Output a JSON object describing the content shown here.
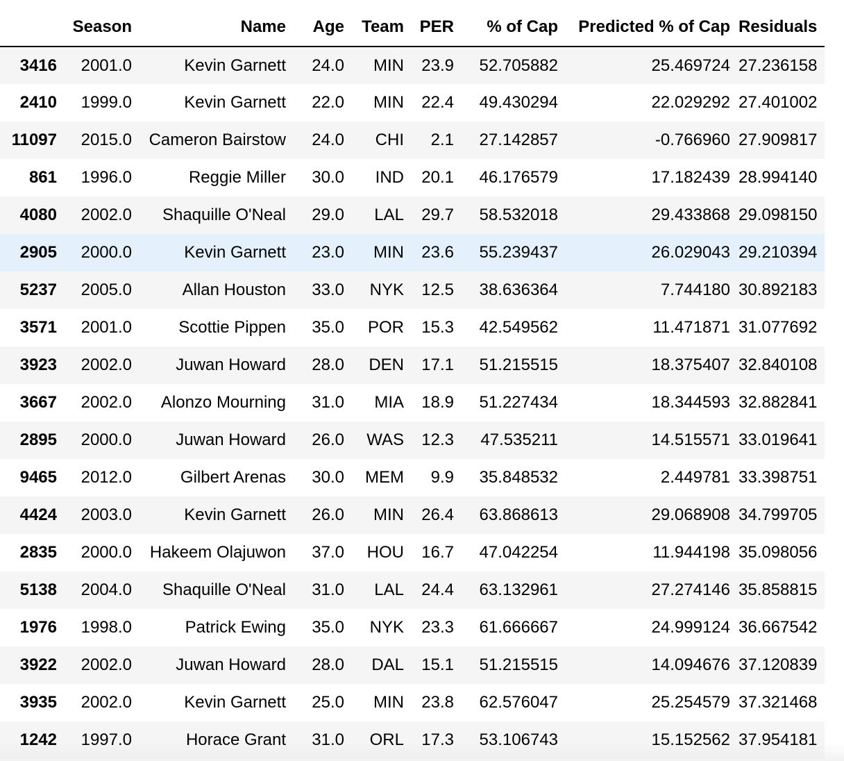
{
  "table": {
    "columns": [
      "",
      "Season",
      "Name",
      "Age",
      "Team",
      "PER",
      "% of Cap",
      "Predicted % of Cap",
      "Residuals"
    ],
    "highlight_color": "#e4f1fd",
    "stripe_color": "#f5f5f5",
    "rows": [
      {
        "index": "3416",
        "season": "2001.0",
        "name": "Kevin Garnett",
        "age": "24.0",
        "team": "MIN",
        "per": "23.9",
        "pct_cap": "52.705882",
        "pred_pct_cap": "25.469724",
        "residuals": "27.236158"
      },
      {
        "index": "2410",
        "season": "1999.0",
        "name": "Kevin Garnett",
        "age": "22.0",
        "team": "MIN",
        "per": "22.4",
        "pct_cap": "49.430294",
        "pred_pct_cap": "22.029292",
        "residuals": "27.401002"
      },
      {
        "index": "11097",
        "season": "2015.0",
        "name": "Cameron Bairstow",
        "age": "24.0",
        "team": "CHI",
        "per": "2.1",
        "pct_cap": "27.142857",
        "pred_pct_cap": "-0.766960",
        "residuals": "27.909817"
      },
      {
        "index": "861",
        "season": "1996.0",
        "name": "Reggie Miller",
        "age": "30.0",
        "team": "IND",
        "per": "20.1",
        "pct_cap": "46.176579",
        "pred_pct_cap": "17.182439",
        "residuals": "28.994140"
      },
      {
        "index": "4080",
        "season": "2002.0",
        "name": "Shaquille O'Neal",
        "age": "29.0",
        "team": "LAL",
        "per": "29.7",
        "pct_cap": "58.532018",
        "pred_pct_cap": "29.433868",
        "residuals": "29.098150"
      },
      {
        "index": "2905",
        "season": "2000.0",
        "name": "Kevin Garnett",
        "age": "23.0",
        "team": "MIN",
        "per": "23.6",
        "pct_cap": "55.239437",
        "pred_pct_cap": "26.029043",
        "residuals": "29.210394",
        "highlight": true
      },
      {
        "index": "5237",
        "season": "2005.0",
        "name": "Allan Houston",
        "age": "33.0",
        "team": "NYK",
        "per": "12.5",
        "pct_cap": "38.636364",
        "pred_pct_cap": "7.744180",
        "residuals": "30.892183"
      },
      {
        "index": "3571",
        "season": "2001.0",
        "name": "Scottie Pippen",
        "age": "35.0",
        "team": "POR",
        "per": "15.3",
        "pct_cap": "42.549562",
        "pred_pct_cap": "11.471871",
        "residuals": "31.077692"
      },
      {
        "index": "3923",
        "season": "2002.0",
        "name": "Juwan Howard",
        "age": "28.0",
        "team": "DEN",
        "per": "17.1",
        "pct_cap": "51.215515",
        "pred_pct_cap": "18.375407",
        "residuals": "32.840108"
      },
      {
        "index": "3667",
        "season": "2002.0",
        "name": "Alonzo Mourning",
        "age": "31.0",
        "team": "MIA",
        "per": "18.9",
        "pct_cap": "51.227434",
        "pred_pct_cap": "18.344593",
        "residuals": "32.882841"
      },
      {
        "index": "2895",
        "season": "2000.0",
        "name": "Juwan Howard",
        "age": "26.0",
        "team": "WAS",
        "per": "12.3",
        "pct_cap": "47.535211",
        "pred_pct_cap": "14.515571",
        "residuals": "33.019641"
      },
      {
        "index": "9465",
        "season": "2012.0",
        "name": "Gilbert Arenas",
        "age": "30.0",
        "team": "MEM",
        "per": "9.9",
        "pct_cap": "35.848532",
        "pred_pct_cap": "2.449781",
        "residuals": "33.398751"
      },
      {
        "index": "4424",
        "season": "2003.0",
        "name": "Kevin Garnett",
        "age": "26.0",
        "team": "MIN",
        "per": "26.4",
        "pct_cap": "63.868613",
        "pred_pct_cap": "29.068908",
        "residuals": "34.799705"
      },
      {
        "index": "2835",
        "season": "2000.0",
        "name": "Hakeem Olajuwon",
        "age": "37.0",
        "team": "HOU",
        "per": "16.7",
        "pct_cap": "47.042254",
        "pred_pct_cap": "11.944198",
        "residuals": "35.098056"
      },
      {
        "index": "5138",
        "season": "2004.0",
        "name": "Shaquille O'Neal",
        "age": "31.0",
        "team": "LAL",
        "per": "24.4",
        "pct_cap": "63.132961",
        "pred_pct_cap": "27.274146",
        "residuals": "35.858815"
      },
      {
        "index": "1976",
        "season": "1998.0",
        "name": "Patrick Ewing",
        "age": "35.0",
        "team": "NYK",
        "per": "23.3",
        "pct_cap": "61.666667",
        "pred_pct_cap": "24.999124",
        "residuals": "36.667542"
      },
      {
        "index": "3922",
        "season": "2002.0",
        "name": "Juwan Howard",
        "age": "28.0",
        "team": "DAL",
        "per": "15.1",
        "pct_cap": "51.215515",
        "pred_pct_cap": "14.094676",
        "residuals": "37.120839"
      },
      {
        "index": "3935",
        "season": "2002.0",
        "name": "Kevin Garnett",
        "age": "25.0",
        "team": "MIN",
        "per": "23.8",
        "pct_cap": "62.576047",
        "pred_pct_cap": "25.254579",
        "residuals": "37.321468"
      },
      {
        "index": "1242",
        "season": "1997.0",
        "name": "Horace Grant",
        "age": "31.0",
        "team": "ORL",
        "per": "17.3",
        "pct_cap": "53.106743",
        "pred_pct_cap": "15.152562",
        "residuals": "37.954181"
      }
    ]
  }
}
